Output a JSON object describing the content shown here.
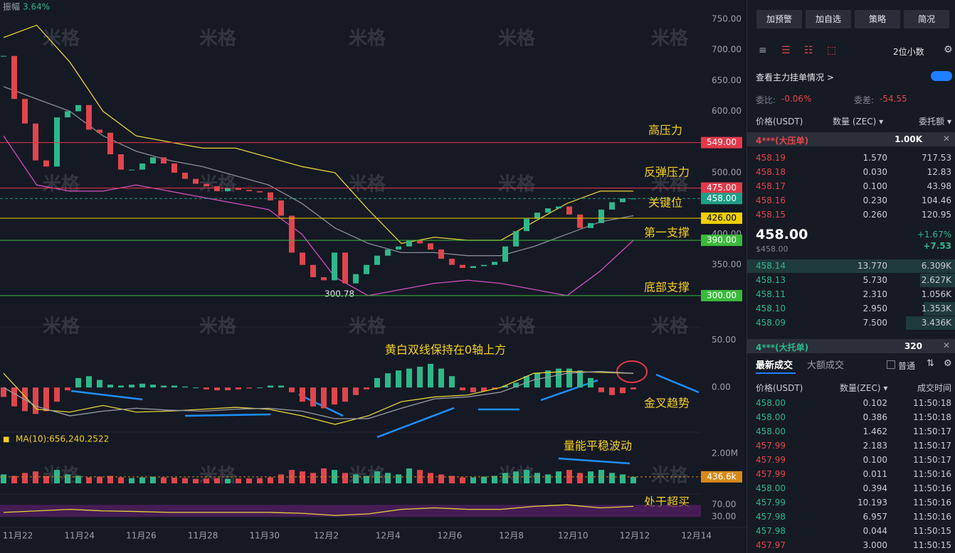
{
  "chart_data": {
    "type": "candlestick",
    "amplitude": {
      "label": "振幅",
      "value": "3.64%"
    },
    "watermark": "米格",
    "low_label": "300.78",
    "categories": [
      "11月22",
      "11月24",
      "11月26",
      "11月28",
      "11月30",
      "12月2",
      "12月4",
      "12月6",
      "12月8",
      "12月10",
      "12月12",
      "12月14"
    ],
    "closes": [
      690,
      620,
      580,
      520,
      510,
      590,
      600,
      610,
      570,
      565,
      530,
      505,
      505,
      515,
      525,
      515,
      500,
      490,
      482,
      478,
      470,
      475,
      472,
      470,
      468,
      455,
      430,
      370,
      350,
      330,
      325,
      370,
      320,
      335,
      350,
      365,
      375,
      380,
      390,
      385,
      375,
      360,
      350,
      345,
      348,
      350,
      355,
      380,
      405,
      425,
      435,
      442,
      445,
      432,
      410,
      418,
      440,
      452,
      458,
      458
    ],
    "up_color": "#2eb88a",
    "down_color": "#e0464c",
    "ylim": [
      249,
      781
    ],
    "yticks": [
      {
        "value": 750,
        "label": "750.00"
      },
      {
        "value": 700,
        "label": "700.00"
      },
      {
        "value": 650,
        "label": "650.00"
      },
      {
        "value": 600,
        "label": "600.00"
      },
      {
        "value": 500,
        "label": "500.00"
      },
      {
        "value": 400,
        "label": "400.00"
      },
      {
        "value": 350,
        "label": "350.00"
      }
    ],
    "bands": [
      {
        "color": "#e8d23a",
        "values": [
          720,
          740,
          680,
          600,
          560,
          550,
          540,
          540,
          525,
          510,
          500,
          440,
          385,
          395,
          390,
          390,
          420,
          450,
          470,
          470
        ]
      },
      {
        "color": "#8a8d96",
        "values": [
          640,
          620,
          600,
          560,
          535,
          520,
          510,
          495,
          480,
          450,
          410,
          385,
          370,
          370,
          365,
          365,
          380,
          400,
          420,
          430
        ]
      },
      {
        "color": "#d04fc0",
        "values": [
          560,
          480,
          470,
          470,
          480,
          470,
          460,
          450,
          440,
          400,
          330,
          300,
          310,
          320,
          325,
          320,
          310,
          300,
          340,
          390
        ]
      }
    ],
    "levels": [
      {
        "value": 549,
        "label": "549.00",
        "color": "#e23a4a",
        "text_color": "#ffffff"
      },
      {
        "value": 475,
        "label": "475.00",
        "color": "#e23a4a",
        "text_color": "#ffffff"
      },
      {
        "value": 458,
        "label": "458.00",
        "color": "#1f9e86",
        "text_color": "#ffffff",
        "dashed": true
      },
      {
        "value": 426,
        "label": "426.00",
        "color": "#f0d000",
        "text_color": "#000000"
      },
      {
        "value": 390,
        "label": "390.00",
        "color": "#3cb93c",
        "text_color": "#ffffff"
      },
      {
        "value": 300,
        "label": "300.00",
        "color": "#3cb93c",
        "text_color": "#ffffff"
      }
    ],
    "annotations": [
      "高压力",
      "反弹压力",
      "关键位",
      "第一支撑",
      "底部支撑",
      "黄白双线保持在0轴上方",
      "金叉趋势",
      "量能平稳波动",
      "处于超买"
    ],
    "macd": {
      "ylim": [
        -45,
        64
      ],
      "yticks": [
        {
          "value": 0,
          "label": "0.00"
        },
        {
          "value": 50,
          "label": "50.00"
        }
      ],
      "histogram": [
        -10,
        -20,
        -25,
        -28,
        -25,
        -15,
        -3,
        10,
        12,
        8,
        3,
        2,
        3,
        4,
        3,
        2,
        2,
        1,
        0,
        -2,
        -3,
        -3,
        -2,
        -1,
        0,
        2,
        2,
        -5,
        -15,
        -20,
        -22,
        -18,
        -15,
        -8,
        -2,
        10,
        15,
        18,
        20,
        22,
        25,
        20,
        12,
        -3,
        -5,
        -4,
        -2,
        2,
        5,
        12,
        15,
        18,
        20,
        20,
        18,
        10,
        -5,
        -8,
        -6,
        -2
      ],
      "dif": [
        15,
        -23,
        -26,
        -19,
        -26,
        -25,
        -23,
        -21,
        -23,
        -30,
        -39,
        -30,
        -15,
        -10,
        -8,
        0,
        15,
        17,
        16,
        15
      ],
      "dea": [
        0,
        -20,
        -30,
        -25,
        -22,
        -24,
        -25,
        -23,
        -22,
        -25,
        -33,
        -33,
        -22,
        -12,
        -10,
        -5,
        8,
        15,
        17,
        15
      ]
    },
    "volume": {
      "ma_label": "MA(10):656,240.2522",
      "ylim": [
        0,
        3100000
      ],
      "yticks": [
        {
          "value": 2000000,
          "label": "2.00M"
        }
      ],
      "values": [
        600000,
        500000,
        700000,
        800000,
        500000,
        900000,
        600000,
        500000,
        400000,
        450000,
        500000,
        400000,
        350000,
        400000,
        450000,
        400000,
        380000,
        350000,
        300000,
        320000,
        350000,
        300000,
        320000,
        330000,
        350000,
        400000,
        600000,
        900000,
        800000,
        700000,
        1000000,
        900000,
        700000,
        600000,
        500000,
        800000,
        700000,
        600000,
        1000000,
        900000,
        700000,
        600000,
        500000,
        400000,
        400000,
        450000,
        500000,
        700000,
        800000,
        900000,
        700000,
        600000,
        800000,
        900000,
        700000,
        800000,
        900000,
        700000,
        600000,
        436600
      ],
      "current": {
        "value": 436600,
        "label": "436.6k",
        "color": "#d68a1a"
      }
    },
    "rsi": {
      "ylim": [
        0,
        94
      ],
      "yticks": [
        {
          "value": 70,
          "label": "70.00"
        },
        {
          "value": 30,
          "label": "30.00"
        }
      ],
      "values": [
        45,
        50,
        55,
        50,
        48,
        45,
        45,
        45,
        45,
        42,
        35,
        40,
        55,
        60,
        55,
        55,
        65,
        70,
        60,
        65
      ]
    }
  },
  "panel": {
    "buttons": [
      "加预警",
      "加自选",
      "策略",
      "简况"
    ],
    "decimals": "2位小数",
    "depth_link": "查看主力挂单情况 >",
    "ratio_label": "委比:",
    "ratio": "-0.06%",
    "diff_label": "委差:",
    "diff": "-54.55",
    "headers": [
      "价格(USDT)",
      "数量 (ZEC) ▾",
      "委托额 ▾"
    ],
    "big_ask": {
      "label": "4***(大压单)",
      "amount": "1.00K"
    },
    "asks": [
      [
        "458.19",
        "1.570",
        "717.53"
      ],
      [
        "458.18",
        "0.030",
        "12.83"
      ],
      [
        "458.17",
        "0.100",
        "43.98"
      ],
      [
        "458.16",
        "0.230",
        "104.46"
      ],
      [
        "458.15",
        "0.260",
        "120.95"
      ]
    ],
    "last_price": "458.00",
    "last_usd": "$458.00",
    "change_pct": "+1.67%",
    "change": "+7.53",
    "bids": [
      [
        "458.14",
        "13.770",
        "6.309K"
      ],
      [
        "458.13",
        "5.730",
        "2.627K"
      ],
      [
        "458.11",
        "2.310",
        "1.056K"
      ],
      [
        "458.10",
        "2.950",
        "1.353K"
      ],
      [
        "458.09",
        "7.500",
        "3.436K"
      ]
    ],
    "big_bid": {
      "label": "4***(大托单)",
      "amount": "320"
    },
    "tabs": [
      "最新成交",
      "大额成交"
    ],
    "normal": "普通",
    "trade_headers": [
      "价格(USDT)",
      "数量(ZEC) ▾",
      "成交时间"
    ],
    "trades": [
      [
        "458.00",
        "0.102",
        "11:50:18"
      ],
      [
        "458.00",
        "0.386",
        "11:50:18"
      ],
      [
        "458.00",
        "1.462",
        "11:50:17"
      ],
      [
        "457.99",
        "2.183",
        "11:50:17"
      ],
      [
        "457.99",
        "0.100",
        "11:50:17"
      ],
      [
        "457.99",
        "0.011",
        "11:50:16"
      ],
      [
        "458.00",
        "0.394",
        "11:50:16"
      ],
      [
        "457.99",
        "10.193",
        "11:50:16"
      ],
      [
        "457.98",
        "6.957",
        "11:50:16"
      ],
      [
        "457.98",
        "0.044",
        "11:50:15"
      ],
      [
        "457.97",
        "3.000",
        "11:50:15"
      ]
    ],
    "trade_colors": [
      "#2eb88a",
      "#2eb88a",
      "#2eb88a",
      "#e0464c",
      "#e0464c",
      "#e0464c",
      "#2eb88a",
      "#2eb88a",
      "#2eb88a",
      "#2eb88a",
      "#e0464c"
    ]
  }
}
